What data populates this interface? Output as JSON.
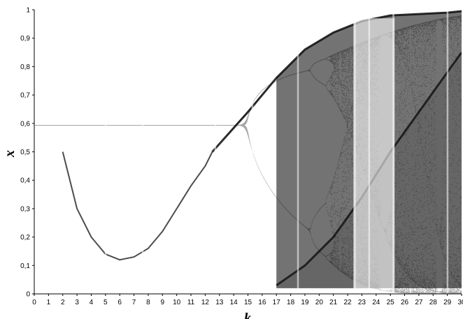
{
  "chart_data": {
    "type": "scatter",
    "title": "",
    "xlabel": "k",
    "ylabel": "x",
    "xlim": [
      0,
      30
    ],
    "ylim": [
      0,
      1
    ],
    "x_ticks": [
      "0",
      "1",
      "2",
      "3",
      "4",
      "5",
      "6",
      "7",
      "8",
      "9",
      "10",
      "11",
      "12",
      "13",
      "14",
      "15",
      "16",
      "17",
      "18",
      "19",
      "20",
      "21",
      "22",
      "23",
      "24",
      "25",
      "26",
      "27",
      "28",
      "29",
      "30"
    ],
    "y_ticks": [
      "0",
      "0,1",
      "0,2",
      "0,3",
      "0,4",
      "0,5",
      "0,6",
      "0,7",
      "0,8",
      "0,9",
      "1"
    ],
    "grid": false,
    "legend": "none",
    "point_color": "#000000",
    "upper_envelope": {
      "x": [
        12.5,
        15,
        17,
        19,
        21,
        23,
        25,
        27,
        29,
        30
      ],
      "y": [
        0.5,
        0.64,
        0.76,
        0.86,
        0.92,
        0.96,
        0.98,
        0.985,
        0.99,
        0.995
      ]
    },
    "lower_branch": {
      "x": [
        2,
        3,
        4,
        5,
        6,
        7,
        8,
        9,
        10,
        11,
        12,
        12.5
      ],
      "y": [
        0.5,
        0.3,
        0.2,
        0.14,
        0.12,
        0.13,
        0.16,
        0.22,
        0.3,
        0.38,
        0.45,
        0.5
      ]
    },
    "second_band": {
      "x": [
        17,
        19,
        21,
        23,
        25,
        27,
        29,
        30
      ],
      "y": [
        0.03,
        0.1,
        0.2,
        0.34,
        0.5,
        0.64,
        0.78,
        0.85
      ]
    },
    "periodic_windows": [
      5,
      7.6,
      12.7,
      15.3,
      18.5,
      22.5,
      23.5,
      25.2,
      29
    ],
    "period3_window": {
      "x_start": 22.4,
      "x_end": 25.3
    }
  }
}
